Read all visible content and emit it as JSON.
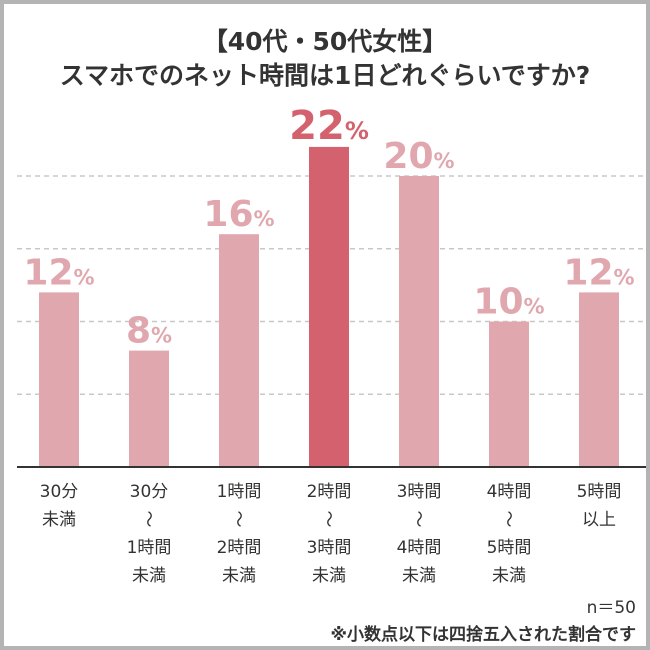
{
  "chart_data": {
    "type": "bar",
    "title_lines": [
      "【40代・50代女性】",
      "スマホでのネット時間は1日どれぐらいですか?"
    ],
    "categories": [
      [
        "30分",
        "未満"
      ],
      [
        "30分",
        "〜",
        "1時間",
        "未満"
      ],
      [
        "1時間",
        "〜",
        "2時間",
        "未満"
      ],
      [
        "2時間",
        "〜",
        "3時間",
        "未満"
      ],
      [
        "3時間",
        "〜",
        "4時間",
        "未満"
      ],
      [
        "4時間",
        "〜",
        "5時間",
        "未満"
      ],
      [
        "5時間",
        "以上"
      ]
    ],
    "values": [
      12,
      8,
      16,
      22,
      20,
      10,
      12
    ],
    "unit": "%",
    "highlight_index": 3,
    "ylim": [
      0,
      25
    ],
    "grid": {
      "on": true,
      "style": "dashed",
      "interval": 5
    },
    "colors": {
      "bar": "#e0a8ae",
      "highlight": "#d4626e",
      "text": "#333333",
      "grid": "#c8c8c8"
    },
    "sample_note": "n＝50",
    "footnote": "※小数点以下は四捨五入された割合です"
  }
}
